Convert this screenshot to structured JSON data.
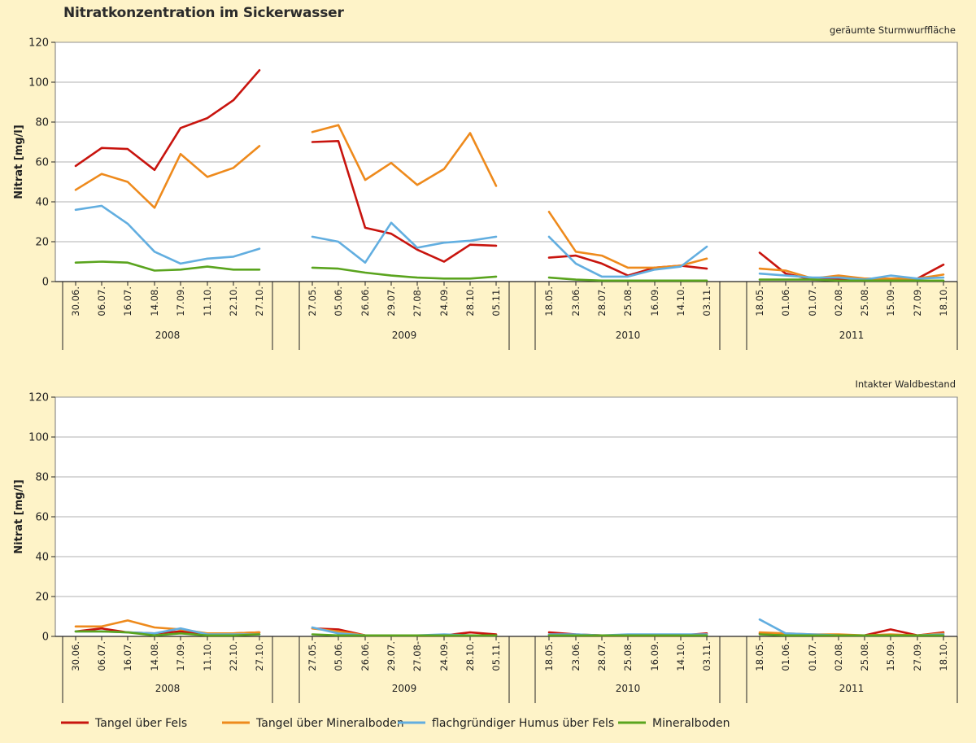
{
  "title": "Nitratkonzentration im Sickerwasser",
  "colors": {
    "background": "#FEF3C8",
    "plot_background": "#FFFFFF",
    "grid": "#999999",
    "series": [
      "#C8140E",
      "#EE8A1C",
      "#62AEE0",
      "#5AA41E"
    ]
  },
  "chart_data": [
    {
      "type": "line",
      "subtitle": "geräumte Sturmwurffläche",
      "ylabel": "Nitrat [mg/l]",
      "ylim": [
        0,
        120
      ],
      "yticks": [
        0,
        20,
        40,
        60,
        80,
        100,
        120
      ],
      "grid": true,
      "legend": "bottom",
      "groups": [
        {
          "year": "2008",
          "x": [
            "30.06.",
            "06.07.",
            "16.07.",
            "14.08.",
            "17.09.",
            "11.10.",
            "22.10.",
            "27.10."
          ]
        },
        {
          "year": "2009",
          "x": [
            "27.05.",
            "05.06.",
            "26.06.",
            "29.07.",
            "27.08-",
            "24.09.",
            "28.10.",
            "05.11."
          ]
        },
        {
          "year": "2010",
          "x": [
            "18.05.",
            "23.06.",
            "28.07.",
            "25.08.",
            "16.09.",
            "14.10.",
            "03.11."
          ]
        },
        {
          "year": "2011",
          "x": [
            "18.05.",
            "01.06.",
            "01.07.",
            "02.08.",
            "25.08.",
            "15.09.",
            "27.09.",
            "18.10."
          ]
        }
      ],
      "series": [
        {
          "name": "Tangel über Fels",
          "values": [
            [
              58,
              67,
              66.5,
              56,
              77,
              82,
              91,
              106
            ],
            [
              70,
              70.5,
              27,
              24,
              16,
              10,
              18.5,
              18
            ],
            [
              12,
              13,
              9,
              3,
              7,
              8,
              6.5
            ],
            [
              14.5,
              4,
              1,
              1.5,
              1,
              1.5,
              1.5,
              8.5
            ]
          ]
        },
        {
          "name": "Tangel über Mineralboden",
          "values": [
            [
              46,
              54,
              50,
              37,
              64,
              52.5,
              57,
              68
            ],
            [
              75,
              78.5,
              51,
              59.5,
              48.5,
              56.5,
              74.5,
              48
            ],
            [
              35,
              15,
              13,
              7,
              7,
              8,
              11.5
            ],
            [
              6.5,
              5.5,
              1.5,
              3,
              1.5,
              1.5,
              1.5,
              3.5
            ]
          ]
        },
        {
          "name": "flachgründiger Humus über Fels",
          "values": [
            [
              36,
              38,
              29,
              15,
              9,
              11.5,
              12.5,
              16.5
            ],
            [
              22.5,
              20,
              9.5,
              29.5,
              17,
              19.5,
              20.5,
              22.5
            ],
            [
              22.5,
              9,
              2.5,
              2.5,
              6,
              7.5,
              17.5
            ],
            [
              4,
              3,
              2,
              2,
              1,
              3,
              1.5,
              2
            ]
          ]
        },
        {
          "name": "Mineralboden",
          "values": [
            [
              9.5,
              10,
              9.5,
              5.5,
              6,
              7.5,
              6,
              6
            ],
            [
              7,
              6.5,
              4.5,
              3,
              2,
              1.5,
              1.5,
              2.5
            ],
            [
              2,
              1,
              0.5,
              0.5,
              0.5,
              0.5,
              0.5
            ],
            [
              1,
              1,
              1,
              0.5,
              0.5,
              0.5,
              0.5,
              0.5
            ]
          ]
        }
      ]
    },
    {
      "type": "line",
      "subtitle": "Intakter Waldbestand",
      "ylabel": "Nitrat [mg/l]",
      "ylim": [
        0,
        120
      ],
      "yticks": [
        0,
        20,
        40,
        60,
        80,
        100,
        120
      ],
      "grid": true,
      "legend": "bottom",
      "groups": [
        {
          "year": "2008",
          "x": [
            "30.06.",
            "06.07.",
            "16.07.",
            "14.08.",
            "17.09.",
            "11.10.",
            "22.10.",
            "27.10."
          ]
        },
        {
          "year": "2009",
          "x": [
            "27.05.",
            "05.06.",
            "26.06.",
            "29.07.",
            "27.08-",
            "24.09.",
            "28.10.",
            "05.11."
          ]
        },
        {
          "year": "2010",
          "x": [
            "18.05.",
            "23.06.",
            "28.07.",
            "25.08.",
            "16.09.",
            "14.10.",
            "03.11."
          ]
        },
        {
          "year": "2011",
          "x": [
            "18.05.",
            "01.06.",
            "01.07.",
            "02.08.",
            "25.08.",
            "15.09.",
            "27.09.",
            "18.10."
          ]
        }
      ],
      "series": [
        {
          "name": "Tangel über Fels",
          "values": [
            [
              2.5,
              4,
              2,
              1.5,
              2.5,
              1,
              1.5,
              2
            ],
            [
              4,
              3.5,
              0.5,
              0.5,
              0.5,
              0.5,
              2,
              1
            ],
            [
              2,
              1,
              0.5,
              0.5,
              0.5,
              0.5,
              1.5
            ],
            [
              1.5,
              1,
              0.5,
              0.5,
              0.5,
              3.5,
              0.5,
              2
            ]
          ]
        },
        {
          "name": "Tangel über Mineralboden",
          "values": [
            [
              5,
              5,
              8,
              4.5,
              3.5,
              1.5,
              1.5,
              2
            ],
            [
              4,
              2.5,
              0.5,
              0.5,
              0.5,
              0.5,
              0.5,
              0.5
            ],
            [
              1,
              0.5,
              0.5,
              0.5,
              0.5,
              0.5,
              1
            ],
            [
              2,
              1.5,
              1,
              1,
              0.5,
              1,
              0.5,
              1.5
            ]
          ]
        },
        {
          "name": "flachgründiger Humus über Fels",
          "values": [
            [
              2.5,
              2.5,
              2,
              1.5,
              4,
              1,
              1,
              1
            ],
            [
              4.5,
              1.5,
              0.5,
              0.5,
              0.5,
              1,
              0.5,
              0.5
            ],
            [
              1,
              1,
              0.5,
              1,
              1,
              1,
              1
            ],
            [
              8.5,
              1.5,
              1,
              0.5,
              0.5,
              0.5,
              0.5,
              1
            ]
          ]
        },
        {
          "name": "Mineralboden",
          "values": [
            [
              2.5,
              2.5,
              2,
              0.5,
              1.5,
              0.5,
              0.5,
              1
            ],
            [
              1,
              0.5,
              0.5,
              0.5,
              0.5,
              0.5,
              0.5,
              0.5
            ],
            [
              0.5,
              0.5,
              0.5,
              0.5,
              0.5,
              0.5,
              0.5
            ],
            [
              1,
              0.5,
              0.5,
              0.5,
              0.5,
              0.5,
              0.5,
              0.5
            ]
          ]
        }
      ]
    }
  ]
}
